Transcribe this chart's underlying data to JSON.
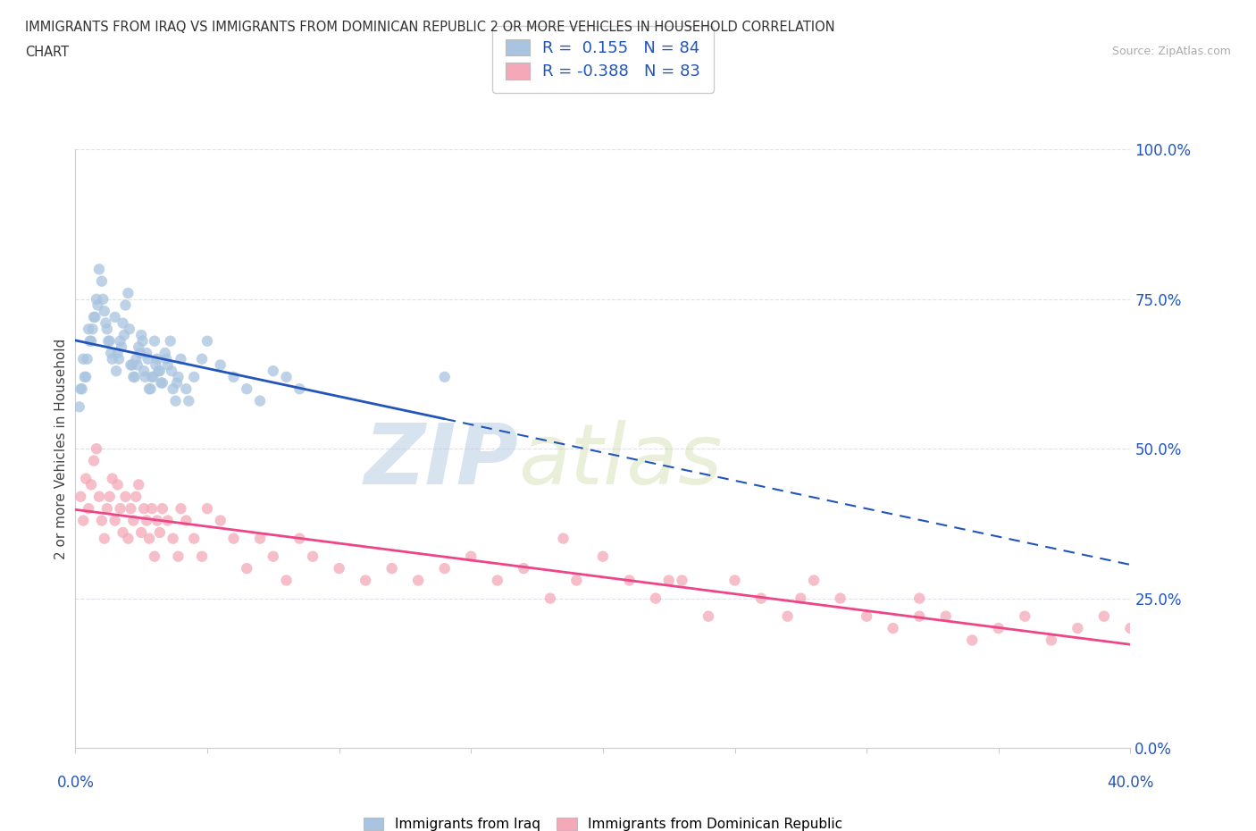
{
  "title_line1": "IMMIGRANTS FROM IRAQ VS IMMIGRANTS FROM DOMINICAN REPUBLIC 2 OR MORE VEHICLES IN HOUSEHOLD CORRELATION",
  "title_line2": "CHART",
  "source": "Source: ZipAtlas.com",
  "iraq_R": 0.155,
  "iraq_N": 84,
  "dom_R": -0.388,
  "dom_N": 83,
  "iraq_color": "#a8c4e0",
  "dom_color": "#f4a8b8",
  "iraq_line_color": "#2255bb",
  "dom_line_color": "#ee4488",
  "ytick_values": [
    0.0,
    25.0,
    50.0,
    75.0,
    100.0
  ],
  "xlim": [
    0.0,
    40.0
  ],
  "ylim": [
    0.0,
    100.0
  ],
  "watermark_zip": "ZIP",
  "watermark_atlas": "atlas",
  "background_color": "#ffffff",
  "grid_color": "#e0e0e8",
  "iraq_scatter_x": [
    0.2,
    0.3,
    0.4,
    0.5,
    0.6,
    0.7,
    0.8,
    0.9,
    1.0,
    1.1,
    1.2,
    1.3,
    1.4,
    1.5,
    1.6,
    1.7,
    1.8,
    1.9,
    2.0,
    2.1,
    2.2,
    2.3,
    2.4,
    2.5,
    2.6,
    2.7,
    2.8,
    2.9,
    3.0,
    3.1,
    3.2,
    3.3,
    3.4,
    3.5,
    3.6,
    3.7,
    3.8,
    3.9,
    4.0,
    4.2,
    4.5,
    4.8,
    5.0,
    5.5,
    6.0,
    6.5,
    7.0,
    7.5,
    8.0,
    8.5,
    0.15,
    0.25,
    0.35,
    0.45,
    0.55,
    0.65,
    0.75,
    0.85,
    1.05,
    1.15,
    1.25,
    1.35,
    1.55,
    1.65,
    1.75,
    1.85,
    2.05,
    2.15,
    2.25,
    2.35,
    2.45,
    2.55,
    2.65,
    2.75,
    2.85,
    2.95,
    3.05,
    3.15,
    3.25,
    3.45,
    3.65,
    3.85,
    4.3,
    14.0
  ],
  "iraq_scatter_y": [
    60,
    65,
    62,
    70,
    68,
    72,
    75,
    80,
    78,
    73,
    70,
    68,
    65,
    72,
    66,
    68,
    71,
    74,
    76,
    64,
    62,
    65,
    67,
    69,
    63,
    66,
    60,
    62,
    68,
    65,
    63,
    61,
    66,
    64,
    68,
    60,
    58,
    62,
    65,
    60,
    62,
    65,
    68,
    64,
    62,
    60,
    58,
    63,
    62,
    60,
    57,
    60,
    62,
    65,
    68,
    70,
    72,
    74,
    75,
    71,
    68,
    66,
    63,
    65,
    67,
    69,
    70,
    64,
    62,
    64,
    66,
    68,
    62,
    65,
    60,
    62,
    64,
    63,
    61,
    65,
    63,
    61,
    58,
    62
  ],
  "dom_scatter_x": [
    0.2,
    0.3,
    0.4,
    0.5,
    0.6,
    0.7,
    0.8,
    0.9,
    1.0,
    1.1,
    1.2,
    1.3,
    1.4,
    1.5,
    1.6,
    1.7,
    1.8,
    1.9,
    2.0,
    2.1,
    2.2,
    2.3,
    2.4,
    2.5,
    2.6,
    2.7,
    2.8,
    2.9,
    3.0,
    3.1,
    3.2,
    3.3,
    3.5,
    3.7,
    3.9,
    4.0,
    4.2,
    4.5,
    4.8,
    5.0,
    5.5,
    6.0,
    6.5,
    7.0,
    7.5,
    8.0,
    8.5,
    9.0,
    10.0,
    11.0,
    12.0,
    13.0,
    14.0,
    15.0,
    16.0,
    17.0,
    18.0,
    19.0,
    20.0,
    21.0,
    22.0,
    23.0,
    24.0,
    25.0,
    26.0,
    27.0,
    28.0,
    29.0,
    30.0,
    31.0,
    32.0,
    33.0,
    34.0,
    35.0,
    36.0,
    37.0,
    38.0,
    39.0,
    40.0,
    18.5,
    22.5,
    27.5,
    32.0
  ],
  "dom_scatter_y": [
    42,
    38,
    45,
    40,
    44,
    48,
    50,
    42,
    38,
    35,
    40,
    42,
    45,
    38,
    44,
    40,
    36,
    42,
    35,
    40,
    38,
    42,
    44,
    36,
    40,
    38,
    35,
    40,
    32,
    38,
    36,
    40,
    38,
    35,
    32,
    40,
    38,
    35,
    32,
    40,
    38,
    35,
    30,
    35,
    32,
    28,
    35,
    32,
    30,
    28,
    30,
    28,
    30,
    32,
    28,
    30,
    25,
    28,
    32,
    28,
    25,
    28,
    22,
    28,
    25,
    22,
    28,
    25,
    22,
    20,
    25,
    22,
    18,
    20,
    22,
    18,
    20,
    22,
    20,
    35,
    28,
    25,
    22
  ]
}
